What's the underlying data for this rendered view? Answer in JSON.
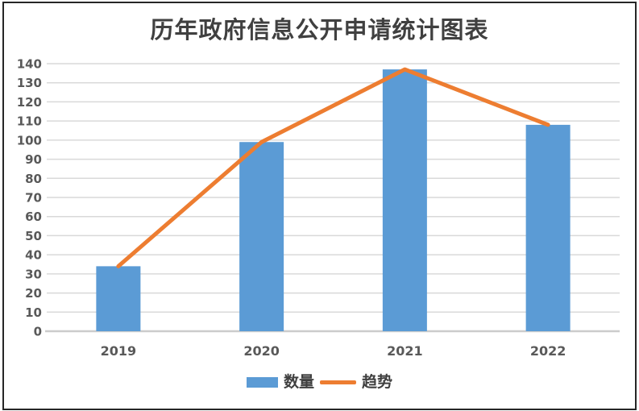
{
  "chart_data": {
    "type": "bar",
    "title": "历年政府信息公开申请统计图表",
    "categories": [
      "2019",
      "2020",
      "2021",
      "2022"
    ],
    "series": [
      {
        "name": "数量",
        "type": "bar",
        "color": "#5B9BD5",
        "values": [
          34,
          99,
          137,
          108
        ]
      },
      {
        "name": "趋势",
        "type": "line",
        "color": "#ED7D31",
        "values": [
          34,
          99,
          137,
          108
        ]
      }
    ],
    "xlabel": "",
    "ylabel": "",
    "ylim": [
      0,
      140
    ],
    "ytick_step": 10,
    "grid": "horizontal",
    "legend_position": "bottom",
    "colors": {
      "gridline": "#d9d9d9",
      "axis_line": "#cccccc",
      "tick_label": "#595959",
      "title": "#404040",
      "frame_border": "#262626",
      "background": "#ffffff"
    }
  }
}
